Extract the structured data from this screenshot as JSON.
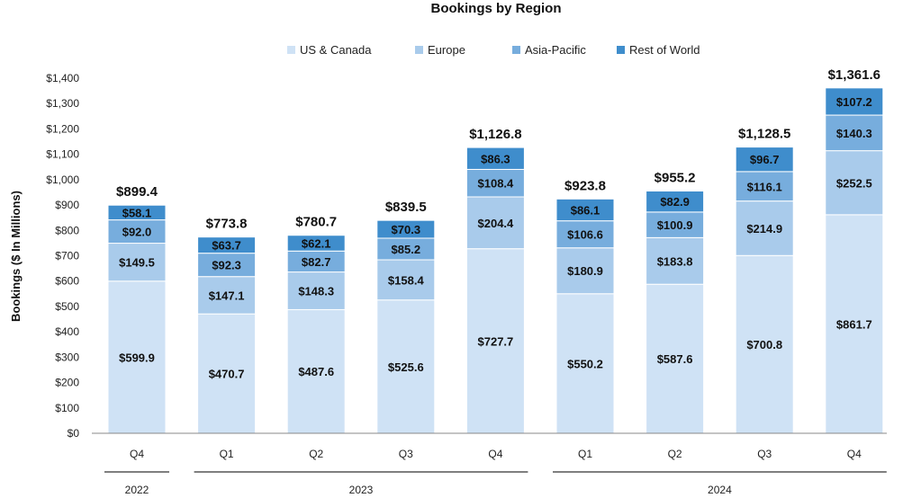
{
  "chart_data": {
    "type": "bar",
    "stacked": true,
    "title": "Bookings by Region",
    "ylabel": "Bookings ($ In Millions)",
    "xlabel": "",
    "ylim": [
      0,
      1400
    ],
    "yticks": [
      0,
      100,
      200,
      300,
      400,
      500,
      600,
      700,
      800,
      900,
      1000,
      1100,
      1200,
      1300,
      1400
    ],
    "ytick_labels": [
      "$0",
      "$100",
      "$200",
      "$300",
      "$400",
      "$500",
      "$600",
      "$700",
      "$800",
      "$900",
      "$1,000",
      "$1,100",
      "$1,200",
      "$1,300",
      "$1,400"
    ],
    "categories": [
      "Q4",
      "Q1",
      "Q2",
      "Q3",
      "Q4",
      "Q1",
      "Q2",
      "Q3",
      "Q4"
    ],
    "year_groups": [
      {
        "label": "2022",
        "span": 1
      },
      {
        "label": "2023",
        "span": 4
      },
      {
        "label": "2024",
        "span": 4
      }
    ],
    "legend_position": "top-center",
    "series": [
      {
        "name": "US & Canada",
        "color": "#cfe2f5",
        "values": [
          599.9,
          470.7,
          487.6,
          525.6,
          727.7,
          550.2,
          587.6,
          700.8,
          861.7
        ],
        "labels": [
          "$599.9",
          "$470.7",
          "$487.6",
          "$525.6",
          "$727.7",
          "$550.2",
          "$587.6",
          "$700.8",
          "$861.7"
        ]
      },
      {
        "name": "Europe",
        "color": "#a9cbeb",
        "values": [
          149.5,
          147.1,
          148.3,
          158.4,
          204.4,
          180.9,
          183.8,
          214.9,
          252.5
        ],
        "labels": [
          "$149.5",
          "$147.1",
          "$148.3",
          "$158.4",
          "$204.4",
          "$180.9",
          "$183.8",
          "$214.9",
          "$252.5"
        ]
      },
      {
        "name": "Asia-Pacific",
        "color": "#77addd",
        "values": [
          92.0,
          92.3,
          82.7,
          85.2,
          108.4,
          106.6,
          100.9,
          116.1,
          140.3
        ],
        "labels": [
          "$92.0",
          "$92.3",
          "$82.7",
          "$85.2",
          "$108.4",
          "$106.6",
          "$100.9",
          "$116.1",
          "$140.3"
        ]
      },
      {
        "name": "Rest of World",
        "color": "#3f8dcc",
        "values": [
          58.1,
          63.7,
          62.1,
          70.3,
          86.3,
          86.1,
          82.9,
          96.7,
          107.2
        ],
        "labels": [
          "$58.1",
          "$63.7",
          "$62.1",
          "$70.3",
          "$86.3",
          "$86.1",
          "$82.9",
          "$96.7",
          "$107.2"
        ]
      }
    ],
    "totals": [
      899.4,
      773.8,
      780.7,
      839.5,
      1126.8,
      923.8,
      955.2,
      1128.5,
      1361.6
    ],
    "total_labels": [
      "$899.4",
      "$773.8",
      "$780.7",
      "$839.5",
      "$1,126.8",
      "$923.8",
      "$955.2",
      "$1,128.5",
      "$1,361.6"
    ]
  }
}
